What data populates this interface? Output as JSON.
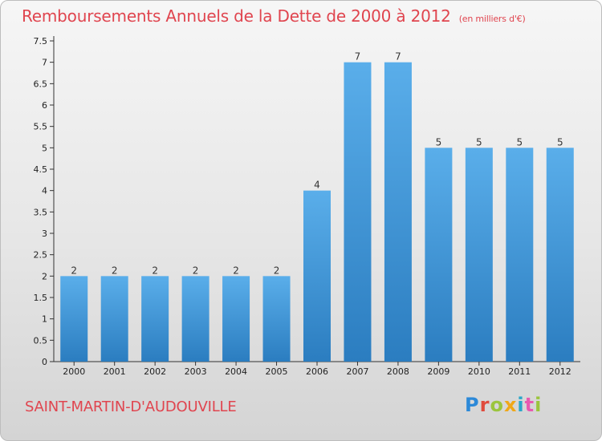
{
  "header": {
    "title": "Remboursements Annuels de la Dette de 2000 à 2012",
    "unit_note": "(en milliers d'€)"
  },
  "footer": {
    "commune": "SAINT-MARTIN-D'AUDOUVILLE",
    "brand": "Proxiti"
  },
  "colors": {
    "title": "#e0454f",
    "bar_light": "#5aaeea",
    "bar_dark": "#2b7dc0",
    "axis": "#333333"
  },
  "chart_data": {
    "type": "bar",
    "title": "Remboursements Annuels de la Dette de 2000 à 2012",
    "subtitle": "(en milliers d'€)",
    "xlabel": "",
    "ylabel": "",
    "categories": [
      "2000",
      "2001",
      "2002",
      "2003",
      "2004",
      "2005",
      "2006",
      "2007",
      "2008",
      "2009",
      "2010",
      "2011",
      "2012"
    ],
    "values": [
      2,
      2,
      2,
      2,
      2,
      2,
      4,
      7,
      7,
      5,
      5,
      5,
      5
    ],
    "data_labels": [
      "2",
      "2",
      "2",
      "2",
      "2",
      "2",
      "4",
      "7",
      "7",
      "5",
      "5",
      "5",
      "5"
    ],
    "ylim": [
      0,
      7.5
    ],
    "yticks": [
      0,
      0.5,
      1,
      1.5,
      2,
      2.5,
      3,
      3.5,
      4,
      4.5,
      5,
      5.5,
      6,
      6.5,
      7,
      7.5
    ],
    "ytick_labels": [
      "0",
      "0.5",
      "1",
      "1.5",
      "2",
      "2.5",
      "3",
      "3.5",
      "4",
      "4.5",
      "5",
      "5.5",
      "6",
      "6.5",
      "7",
      "7.5"
    ],
    "grid": false,
    "legend": "none"
  }
}
